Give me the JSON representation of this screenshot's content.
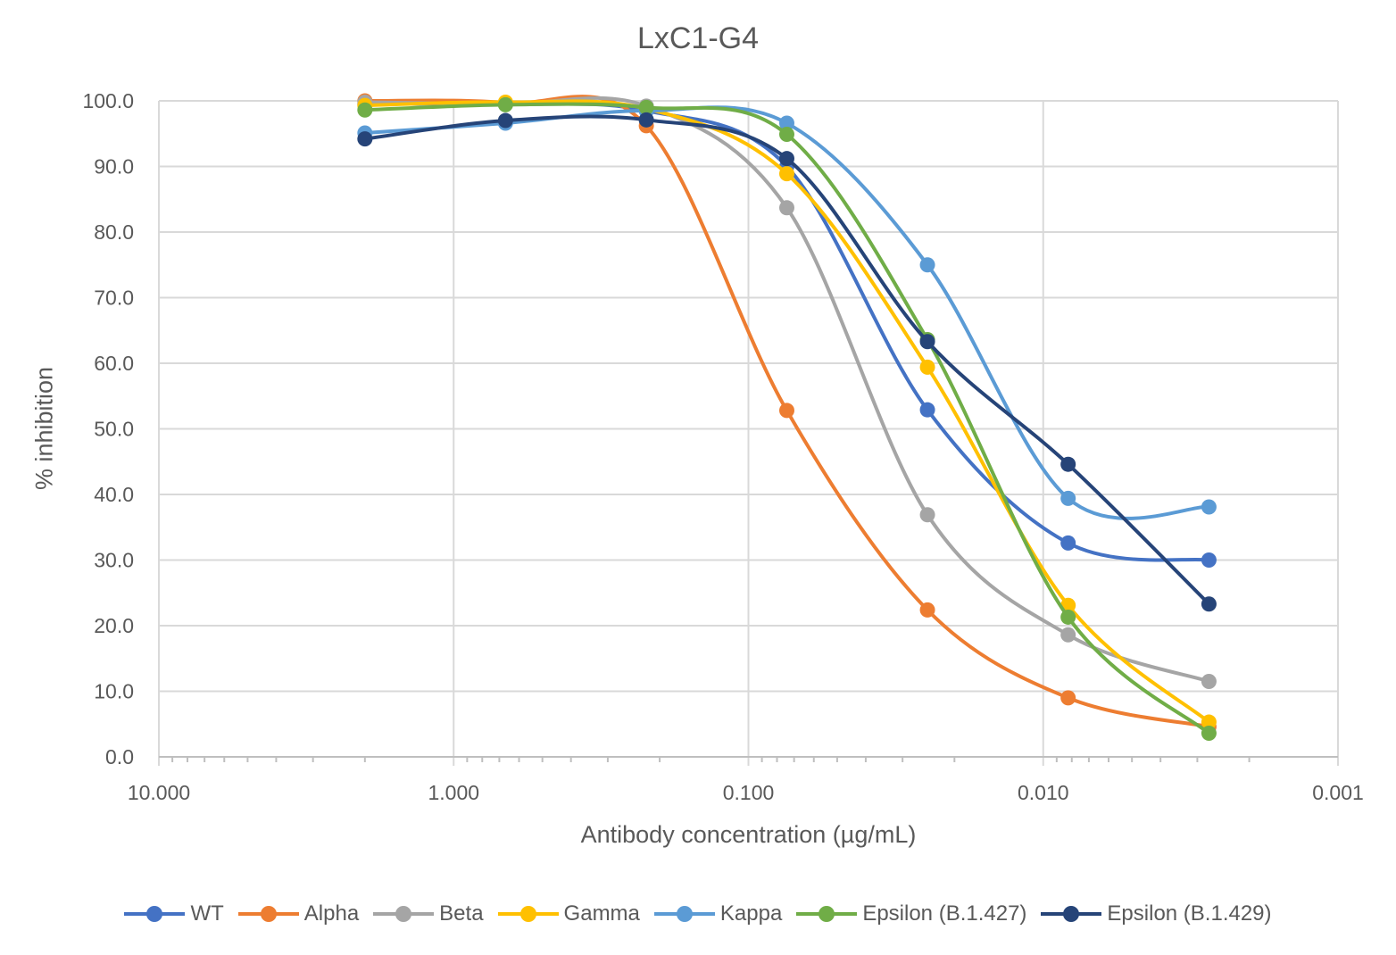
{
  "chart_data": {
    "type": "line",
    "title": "LxC1-G4",
    "xlabel": "Antibody concentration (µg/mL)",
    "ylabel": "% inhibition",
    "x_scale": "log",
    "x_reversed": true,
    "xlim": [
      10,
      0.001
    ],
    "ylim": [
      0,
      100
    ],
    "x_ticks": [
      "10.000",
      "1.000",
      "0.100",
      "0.010",
      "0.001"
    ],
    "y_ticks": [
      "0.0",
      "10.0",
      "20.0",
      "30.0",
      "40.0",
      "50.0",
      "60.0",
      "70.0",
      "80.0",
      "90.0",
      "100.0"
    ],
    "grid": true,
    "smoothed": true,
    "legend_position": "bottom",
    "x": [
      2.0,
      0.667,
      0.222,
      0.0741,
      0.0247,
      0.00823,
      0.00274
    ],
    "series": [
      {
        "name": "WT",
        "color": "#4472C4",
        "values": [
          99.5,
          99.5,
          98.5,
          90.0,
          52.9,
          32.6,
          30.0
        ]
      },
      {
        "name": "Alpha",
        "color": "#ED7D31",
        "values": [
          100.0,
          99.7,
          96.2,
          52.8,
          22.4,
          9.0,
          4.6
        ]
      },
      {
        "name": "Beta",
        "color": "#A5A5A5",
        "values": [
          99.8,
          99.5,
          99.2,
          83.7,
          36.9,
          18.6,
          11.5
        ]
      },
      {
        "name": "Gamma",
        "color": "#FFC000",
        "values": [
          99.3,
          99.8,
          98.8,
          88.9,
          59.4,
          23.1,
          5.3
        ]
      },
      {
        "name": "Kappa",
        "color": "#5B9BD5",
        "values": [
          95.1,
          96.6,
          98.5,
          96.6,
          75.0,
          39.4,
          38.1
        ]
      },
      {
        "name": "Epsilon (B.1.427)",
        "color": "#70AD47",
        "values": [
          98.6,
          99.4,
          99.0,
          94.9,
          63.6,
          21.3,
          3.6
        ]
      },
      {
        "name": "Epsilon (B.1.429)",
        "color": "#264478",
        "values": [
          94.2,
          97.0,
          97.1,
          91.2,
          63.3,
          44.6,
          23.3
        ]
      }
    ]
  }
}
